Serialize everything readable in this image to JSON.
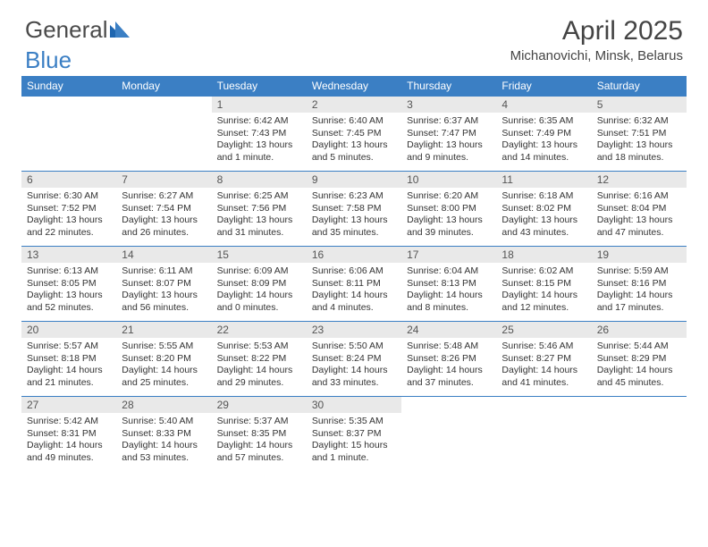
{
  "logo": {
    "part1": "General",
    "part2": "Blue"
  },
  "title": "April 2025",
  "location": "Michanovichi, Minsk, Belarus",
  "colors": {
    "header_bg": "#3b7fc4",
    "header_text": "#ffffff",
    "daynum_bg": "#e9e9e9",
    "daynum_text": "#555555",
    "body_text": "#333333",
    "page_bg": "#ffffff",
    "rule": "#3b7fc4"
  },
  "day_headers": [
    "Sunday",
    "Monday",
    "Tuesday",
    "Wednesday",
    "Thursday",
    "Friday",
    "Saturday"
  ],
  "weeks": [
    [
      null,
      null,
      {
        "n": "1",
        "sr": "Sunrise: 6:42 AM",
        "ss": "Sunset: 7:43 PM",
        "dl1": "Daylight: 13 hours",
        "dl2": "and 1 minute."
      },
      {
        "n": "2",
        "sr": "Sunrise: 6:40 AM",
        "ss": "Sunset: 7:45 PM",
        "dl1": "Daylight: 13 hours",
        "dl2": "and 5 minutes."
      },
      {
        "n": "3",
        "sr": "Sunrise: 6:37 AM",
        "ss": "Sunset: 7:47 PM",
        "dl1": "Daylight: 13 hours",
        "dl2": "and 9 minutes."
      },
      {
        "n": "4",
        "sr": "Sunrise: 6:35 AM",
        "ss": "Sunset: 7:49 PM",
        "dl1": "Daylight: 13 hours",
        "dl2": "and 14 minutes."
      },
      {
        "n": "5",
        "sr": "Sunrise: 6:32 AM",
        "ss": "Sunset: 7:51 PM",
        "dl1": "Daylight: 13 hours",
        "dl2": "and 18 minutes."
      }
    ],
    [
      {
        "n": "6",
        "sr": "Sunrise: 6:30 AM",
        "ss": "Sunset: 7:52 PM",
        "dl1": "Daylight: 13 hours",
        "dl2": "and 22 minutes."
      },
      {
        "n": "7",
        "sr": "Sunrise: 6:27 AM",
        "ss": "Sunset: 7:54 PM",
        "dl1": "Daylight: 13 hours",
        "dl2": "and 26 minutes."
      },
      {
        "n": "8",
        "sr": "Sunrise: 6:25 AM",
        "ss": "Sunset: 7:56 PM",
        "dl1": "Daylight: 13 hours",
        "dl2": "and 31 minutes."
      },
      {
        "n": "9",
        "sr": "Sunrise: 6:23 AM",
        "ss": "Sunset: 7:58 PM",
        "dl1": "Daylight: 13 hours",
        "dl2": "and 35 minutes."
      },
      {
        "n": "10",
        "sr": "Sunrise: 6:20 AM",
        "ss": "Sunset: 8:00 PM",
        "dl1": "Daylight: 13 hours",
        "dl2": "and 39 minutes."
      },
      {
        "n": "11",
        "sr": "Sunrise: 6:18 AM",
        "ss": "Sunset: 8:02 PM",
        "dl1": "Daylight: 13 hours",
        "dl2": "and 43 minutes."
      },
      {
        "n": "12",
        "sr": "Sunrise: 6:16 AM",
        "ss": "Sunset: 8:04 PM",
        "dl1": "Daylight: 13 hours",
        "dl2": "and 47 minutes."
      }
    ],
    [
      {
        "n": "13",
        "sr": "Sunrise: 6:13 AM",
        "ss": "Sunset: 8:05 PM",
        "dl1": "Daylight: 13 hours",
        "dl2": "and 52 minutes."
      },
      {
        "n": "14",
        "sr": "Sunrise: 6:11 AM",
        "ss": "Sunset: 8:07 PM",
        "dl1": "Daylight: 13 hours",
        "dl2": "and 56 minutes."
      },
      {
        "n": "15",
        "sr": "Sunrise: 6:09 AM",
        "ss": "Sunset: 8:09 PM",
        "dl1": "Daylight: 14 hours",
        "dl2": "and 0 minutes."
      },
      {
        "n": "16",
        "sr": "Sunrise: 6:06 AM",
        "ss": "Sunset: 8:11 PM",
        "dl1": "Daylight: 14 hours",
        "dl2": "and 4 minutes."
      },
      {
        "n": "17",
        "sr": "Sunrise: 6:04 AM",
        "ss": "Sunset: 8:13 PM",
        "dl1": "Daylight: 14 hours",
        "dl2": "and 8 minutes."
      },
      {
        "n": "18",
        "sr": "Sunrise: 6:02 AM",
        "ss": "Sunset: 8:15 PM",
        "dl1": "Daylight: 14 hours",
        "dl2": "and 12 minutes."
      },
      {
        "n": "19",
        "sr": "Sunrise: 5:59 AM",
        "ss": "Sunset: 8:16 PM",
        "dl1": "Daylight: 14 hours",
        "dl2": "and 17 minutes."
      }
    ],
    [
      {
        "n": "20",
        "sr": "Sunrise: 5:57 AM",
        "ss": "Sunset: 8:18 PM",
        "dl1": "Daylight: 14 hours",
        "dl2": "and 21 minutes."
      },
      {
        "n": "21",
        "sr": "Sunrise: 5:55 AM",
        "ss": "Sunset: 8:20 PM",
        "dl1": "Daylight: 14 hours",
        "dl2": "and 25 minutes."
      },
      {
        "n": "22",
        "sr": "Sunrise: 5:53 AM",
        "ss": "Sunset: 8:22 PM",
        "dl1": "Daylight: 14 hours",
        "dl2": "and 29 minutes."
      },
      {
        "n": "23",
        "sr": "Sunrise: 5:50 AM",
        "ss": "Sunset: 8:24 PM",
        "dl1": "Daylight: 14 hours",
        "dl2": "and 33 minutes."
      },
      {
        "n": "24",
        "sr": "Sunrise: 5:48 AM",
        "ss": "Sunset: 8:26 PM",
        "dl1": "Daylight: 14 hours",
        "dl2": "and 37 minutes."
      },
      {
        "n": "25",
        "sr": "Sunrise: 5:46 AM",
        "ss": "Sunset: 8:27 PM",
        "dl1": "Daylight: 14 hours",
        "dl2": "and 41 minutes."
      },
      {
        "n": "26",
        "sr": "Sunrise: 5:44 AM",
        "ss": "Sunset: 8:29 PM",
        "dl1": "Daylight: 14 hours",
        "dl2": "and 45 minutes."
      }
    ],
    [
      {
        "n": "27",
        "sr": "Sunrise: 5:42 AM",
        "ss": "Sunset: 8:31 PM",
        "dl1": "Daylight: 14 hours",
        "dl2": "and 49 minutes."
      },
      {
        "n": "28",
        "sr": "Sunrise: 5:40 AM",
        "ss": "Sunset: 8:33 PM",
        "dl1": "Daylight: 14 hours",
        "dl2": "and 53 minutes."
      },
      {
        "n": "29",
        "sr": "Sunrise: 5:37 AM",
        "ss": "Sunset: 8:35 PM",
        "dl1": "Daylight: 14 hours",
        "dl2": "and 57 minutes."
      },
      {
        "n": "30",
        "sr": "Sunrise: 5:35 AM",
        "ss": "Sunset: 8:37 PM",
        "dl1": "Daylight: 15 hours",
        "dl2": "and 1 minute."
      },
      null,
      null,
      null
    ]
  ]
}
